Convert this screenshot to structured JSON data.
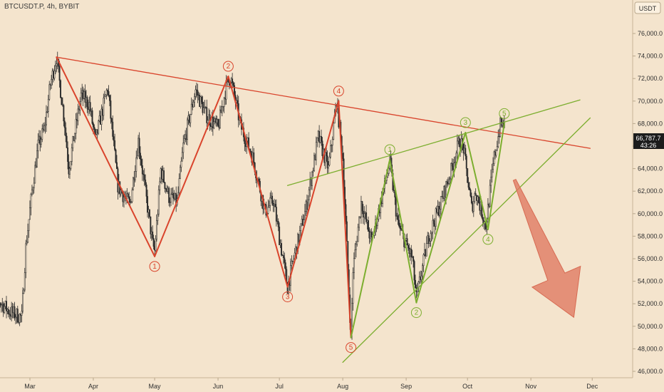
{
  "header": {
    "symbol_line": "BTCUSDT.P, 4h, BYBIT"
  },
  "chart_data": {
    "type": "candlestick",
    "symbol": "BTCUSDT.P",
    "interval": "4h",
    "exchange": "BYBIT",
    "price_axis_unit": "USDT",
    "ylim": [
      45500,
      79000
    ],
    "y_ticks": [
      46000,
      48000,
      50000,
      52000,
      54000,
      56000,
      58000,
      60000,
      62000,
      64000,
      66000,
      68000,
      70000,
      72000,
      74000,
      76000
    ],
    "y_tick_labels": [
      "46,000.0",
      "48,000.0",
      "50,000.0",
      "52,000.0",
      "54,000.0",
      "56,000.0",
      "58,000.0",
      "60,000.0",
      "62,000.0",
      "64,000.0",
      "66,000.0",
      "68,000.0",
      "70,000.0",
      "72,000.0",
      "74,000.0",
      "76,000.0"
    ],
    "x_months": [
      "Mar",
      "Apr",
      "May",
      "Jun",
      "Jul",
      "Aug",
      "Sep",
      "Oct",
      "Nov",
      "Dec"
    ],
    "last_price": "66,787.7",
    "countdown": "43:26",
    "colors": {
      "background": "#f4e4cd",
      "red_wave": "#d9442c",
      "green_wave": "#7cae2f",
      "candle": "#2b2b2b",
      "price_tag": "#1c1c1c",
      "arrow": "#e07a63"
    },
    "price_path": [
      [
        "2024-02-10",
        51500
      ],
      [
        "2024-02-15",
        52200
      ],
      [
        "2024-02-20",
        51300
      ],
      [
        "2024-02-26",
        50800
      ],
      [
        "2024-02-28",
        57000
      ],
      [
        "2024-03-02",
        62000
      ],
      [
        "2024-03-05",
        66000
      ],
      [
        "2024-03-08",
        67500
      ],
      [
        "2024-03-11",
        71500
      ],
      [
        "2024-03-14",
        73900
      ],
      [
        "2024-03-18",
        68000
      ],
      [
        "2024-03-20",
        64000
      ],
      [
        "2024-03-26",
        70500
      ],
      [
        "2024-03-30",
        69700
      ],
      [
        "2024-04-02",
        66500
      ],
      [
        "2024-04-08",
        71200
      ],
      [
        "2024-04-13",
        62500
      ],
      [
        "2024-04-17",
        61200
      ],
      [
        "2024-04-19",
        60900
      ],
      [
        "2024-04-23",
        66500
      ],
      [
        "2024-04-30",
        57300
      ],
      [
        "2024-05-01",
        56700
      ],
      [
        "2024-05-04",
        63900
      ],
      [
        "2024-05-08",
        61500
      ],
      [
        "2024-05-12",
        61000
      ],
      [
        "2024-05-15",
        66000
      ],
      [
        "2024-05-21",
        71000
      ],
      [
        "2024-05-26",
        68800
      ],
      [
        "2024-06-01",
        67600
      ],
      [
        "2024-06-05",
        71300
      ],
      [
        "2024-06-07",
        72200
      ],
      [
        "2024-06-12",
        67800
      ],
      [
        "2024-06-18",
        65000
      ],
      [
        "2024-06-24",
        60200
      ],
      [
        "2024-06-28",
        61200
      ],
      [
        "2024-07-05",
        53500
      ],
      [
        "2024-07-08",
        56000
      ],
      [
        "2024-07-14",
        60500
      ],
      [
        "2024-07-20",
        66800
      ],
      [
        "2024-07-25",
        64000
      ],
      [
        "2024-07-29",
        70000
      ],
      [
        "2024-08-01",
        65000
      ],
      [
        "2024-08-05",
        49000
      ],
      [
        "2024-08-06",
        55000
      ],
      [
        "2024-08-10",
        61000
      ],
      [
        "2024-08-15",
        57500
      ],
      [
        "2024-08-24",
        64500
      ],
      [
        "2024-08-28",
        59000
      ],
      [
        "2024-09-04",
        56000
      ],
      [
        "2024-09-06",
        52500
      ],
      [
        "2024-09-12",
        58000
      ],
      [
        "2024-09-18",
        61000
      ],
      [
        "2024-09-23",
        63800
      ],
      [
        "2024-09-27",
        66500
      ],
      [
        "2024-09-29",
        65800
      ],
      [
        "2024-10-03",
        60500
      ],
      [
        "2024-10-05",
        62000
      ],
      [
        "2024-10-10",
        58900
      ],
      [
        "2024-10-14",
        65000
      ],
      [
        "2024-10-17",
        67800
      ],
      [
        "2024-10-19",
        68000
      ]
    ],
    "red_wave": {
      "points": [
        [
          "2024-03-14",
          73900
        ],
        [
          "2024-05-01",
          56200
        ],
        [
          "2024-06-06",
          72200
        ],
        [
          "2024-07-05",
          53500
        ],
        [
          "2024-07-30",
          70000
        ],
        [
          "2024-08-05",
          49000
        ]
      ],
      "labels": [
        "1",
        "2",
        "3",
        "4",
        "5"
      ],
      "trendline": [
        [
          "2024-03-14",
          73900
        ],
        [
          "2024-11-30",
          65800
        ]
      ]
    },
    "green_wave": {
      "points": [
        [
          "2024-08-05",
          49000
        ],
        [
          "2024-08-24",
          64800
        ],
        [
          "2024-09-06",
          52100
        ],
        [
          "2024-09-30",
          67200
        ],
        [
          "2024-10-11",
          58600
        ],
        [
          "2024-10-19",
          68000
        ]
      ],
      "labels": [
        "1",
        "2",
        "3",
        "4",
        "5"
      ],
      "upper_line": [
        [
          "2024-07-05",
          62500
        ],
        [
          "2024-11-25",
          70100
        ]
      ],
      "lower_line": [
        [
          "2024-08-01",
          46800
        ],
        [
          "2024-11-30",
          68500
        ]
      ]
    },
    "projection": {
      "direction": "down",
      "from": [
        "2024-10-24",
        63000
      ],
      "to": [
        "2024-11-22",
        50800
      ]
    }
  }
}
